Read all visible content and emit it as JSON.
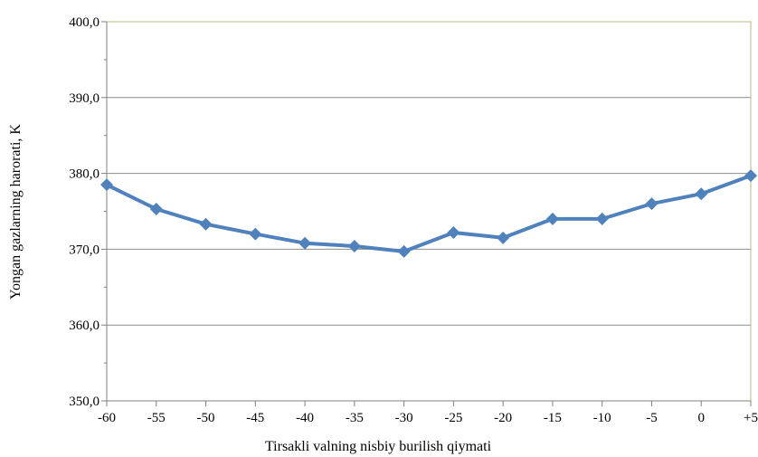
{
  "chart_data": {
    "type": "line",
    "xlabel": "Tirsakli valning nisbiy burilish qiymati",
    "ylabel": "Yongan gazlarning harorati, K",
    "x_tick_labels": [
      "-60",
      "-55",
      "-50",
      "-45",
      "-40",
      "-35",
      "-30",
      "-25",
      "-20",
      "-15",
      "-10",
      "-5",
      "0",
      "+5"
    ],
    "y_tick_labels": [
      "350,0",
      "360,0",
      "370,0",
      "380,0",
      "390,0",
      "400,0"
    ],
    "y_ticks": [
      350,
      360,
      370,
      380,
      390,
      400
    ],
    "ylim": [
      350,
      400
    ],
    "grid": "horizontal",
    "series": [
      {
        "color": "#4f81bd",
        "marker": "diamond",
        "values": [
          378.5,
          375.3,
          373.3,
          372.0,
          370.8,
          370.4,
          369.7,
          372.2,
          371.5,
          374.0,
          374.0,
          376.0,
          377.3,
          379.7
        ]
      }
    ],
    "plot_border_color": "#c0b980",
    "gridline_color": "#8c8c8c"
  }
}
